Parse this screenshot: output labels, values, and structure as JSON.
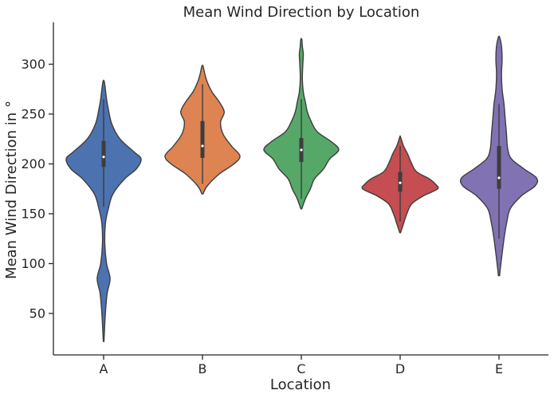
{
  "chart_data": {
    "type": "violin",
    "title": "Mean Wind Direction by Location",
    "xlabel": "Location",
    "ylabel": "Mean Wind Direction in °",
    "categories": [
      "A",
      "B",
      "C",
      "D",
      "E"
    ],
    "yticks": [
      50,
      100,
      150,
      200,
      250,
      300
    ],
    "ylim": [
      8,
      342
    ],
    "grid": false,
    "colors": [
      "#4c72b0",
      "#dd8452",
      "#55a868",
      "#c44e52",
      "#8172b3"
    ],
    "violins": [
      {
        "category": "A",
        "min": 22,
        "max": 283,
        "q1": 197,
        "median": 207,
        "q3": 223,
        "whisker_low": 157,
        "whisker_high": 265,
        "profile": [
          [
            22,
            0.3
          ],
          [
            50,
            1.5
          ],
          [
            70,
            3
          ],
          [
            85,
            5.5
          ],
          [
            100,
            2.5
          ],
          [
            120,
            1
          ],
          [
            140,
            1.5
          ],
          [
            155,
            4
          ],
          [
            170,
            8
          ],
          [
            185,
            18
          ],
          [
            195,
            28
          ],
          [
            205,
            32
          ],
          [
            212,
            26
          ],
          [
            225,
            14
          ],
          [
            240,
            7
          ],
          [
            255,
            4
          ],
          [
            265,
            2.5
          ],
          [
            275,
            1.5
          ],
          [
            283,
            0.5
          ]
        ]
      },
      {
        "category": "B",
        "min": 170,
        "max": 298,
        "q1": 206,
        "median": 218,
        "q3": 243,
        "whisker_low": 180,
        "whisker_high": 280,
        "profile": [
          [
            170,
            0.5
          ],
          [
            178,
            4
          ],
          [
            190,
            14
          ],
          [
            200,
            26
          ],
          [
            208,
            31
          ],
          [
            218,
            24
          ],
          [
            230,
            17
          ],
          [
            242,
            15
          ],
          [
            252,
            18
          ],
          [
            262,
            14
          ],
          [
            272,
            8
          ],
          [
            282,
            4
          ],
          [
            290,
            2
          ],
          [
            298,
            0.5
          ]
        ]
      },
      {
        "category": "C",
        "min": 155,
        "max": 325,
        "q1": 202,
        "median": 214,
        "q3": 226,
        "whisker_low": 165,
        "whisker_high": 265,
        "profile": [
          [
            155,
            0.5
          ],
          [
            165,
            4
          ],
          [
            175,
            9
          ],
          [
            185,
            13
          ],
          [
            195,
            22
          ],
          [
            205,
            28
          ],
          [
            214,
            37
          ],
          [
            222,
            30
          ],
          [
            232,
            16
          ],
          [
            242,
            10
          ],
          [
            252,
            6
          ],
          [
            262,
            4
          ],
          [
            272,
            2
          ],
          [
            285,
            1
          ],
          [
            300,
            1.5
          ],
          [
            310,
            2
          ],
          [
            318,
            1
          ],
          [
            325,
            0.5
          ]
        ]
      },
      {
        "category": "D",
        "min": 131,
        "max": 227,
        "q1": 172,
        "median": 181,
        "q3": 192,
        "whisker_low": 142,
        "whisker_high": 218,
        "profile": [
          [
            131,
            0.5
          ],
          [
            140,
            4
          ],
          [
            150,
            8
          ],
          [
            160,
            14
          ],
          [
            168,
            28
          ],
          [
            175,
            45
          ],
          [
            180,
            42
          ],
          [
            185,
            35
          ],
          [
            192,
            20
          ],
          [
            200,
            14
          ],
          [
            210,
            9
          ],
          [
            218,
            4
          ],
          [
            227,
            0.5
          ]
        ]
      },
      {
        "category": "E",
        "min": 88,
        "max": 327,
        "q1": 175,
        "median": 186,
        "q3": 218,
        "whisker_low": 125,
        "whisker_high": 260,
        "profile": [
          [
            88,
            0.5
          ],
          [
            100,
            1.5
          ],
          [
            110,
            2.5
          ],
          [
            125,
            4
          ],
          [
            140,
            6
          ],
          [
            155,
            9
          ],
          [
            168,
            18
          ],
          [
            178,
            29
          ],
          [
            186,
            30
          ],
          [
            195,
            20
          ],
          [
            205,
            10
          ],
          [
            215,
            7
          ],
          [
            230,
            6
          ],
          [
            245,
            5
          ],
          [
            260,
            4
          ],
          [
            275,
            2.5
          ],
          [
            290,
            2
          ],
          [
            305,
            2.5
          ],
          [
            318,
            2
          ],
          [
            327,
            0.5
          ]
        ]
      }
    ]
  }
}
